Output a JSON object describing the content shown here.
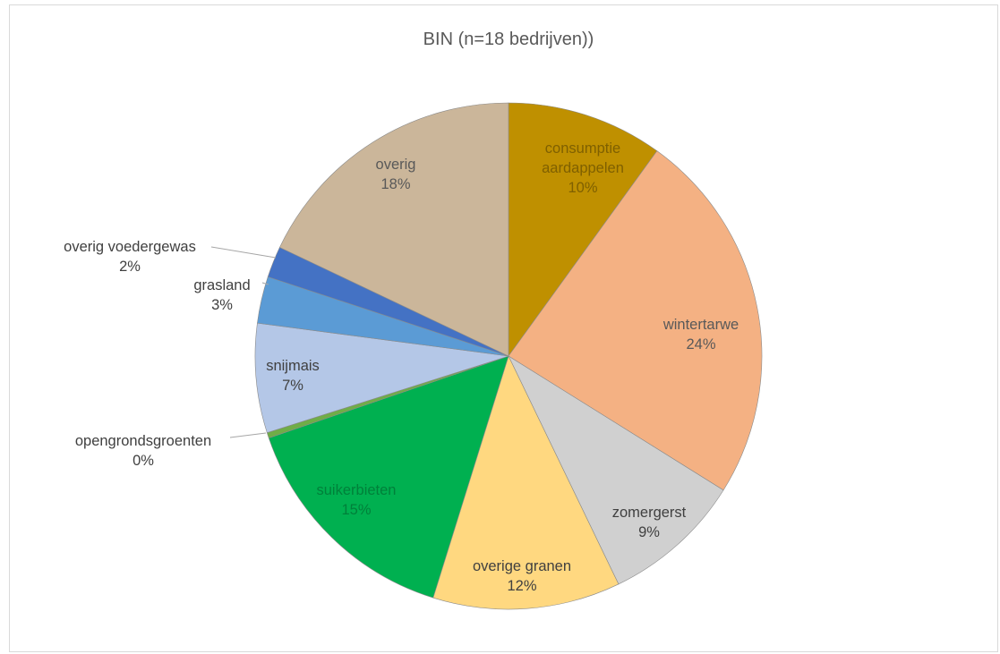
{
  "chart_data": {
    "type": "pie",
    "title": "BIN (n=18 bedrijven))",
    "legend": "none",
    "slices": [
      {
        "name": "consumptie aardappelen",
        "label_lines": [
          "consumptie",
          "aardappelen"
        ],
        "value": 10,
        "value_label": "10%",
        "color": "#bf9000",
        "label_color": "#7f6000"
      },
      {
        "name": "wintertarwe",
        "label_lines": [
          "wintertarwe"
        ],
        "value": 24,
        "value_label": "24%",
        "color": "#f4b183",
        "label_color": "#595959"
      },
      {
        "name": "zomergerst",
        "label_lines": [
          "zomergerst"
        ],
        "value": 9,
        "value_label": "9%",
        "color": "#d0d0d0",
        "label_color": "#404040"
      },
      {
        "name": "overige granen",
        "label_lines": [
          "overige granen"
        ],
        "value": 12,
        "value_label": "12%",
        "color": "#ffd880",
        "label_color": "#404040"
      },
      {
        "name": "suikerbieten",
        "label_lines": [
          "suikerbieten"
        ],
        "value": 15,
        "value_label": "15%",
        "color": "#00b050",
        "label_color": "#00803a"
      },
      {
        "name": "opengrondsgroenten",
        "label_lines": [
          "opengrondsgroenten"
        ],
        "value": 0,
        "value_label": "0%",
        "color": "#70ad47",
        "label_color": "#404040"
      },
      {
        "name": "snijmais",
        "label_lines": [
          "snijmais"
        ],
        "value": 7,
        "value_label": "7%",
        "color": "#b4c7e7",
        "label_color": "#404040"
      },
      {
        "name": "grasland",
        "label_lines": [
          "grasland"
        ],
        "value": 3,
        "value_label": "3%",
        "color": "#5b9bd5",
        "label_color": "#404040"
      },
      {
        "name": "overig voedergewas",
        "label_lines": [
          "overig voedergewas"
        ],
        "value": 2,
        "value_label": "2%",
        "color": "#4472c4",
        "label_color": "#404040"
      },
      {
        "name": "overig",
        "label_lines": [
          "overig"
        ],
        "value": 18,
        "value_label": "18%",
        "color": "#cbb69a",
        "label_color": "#595959"
      }
    ]
  }
}
